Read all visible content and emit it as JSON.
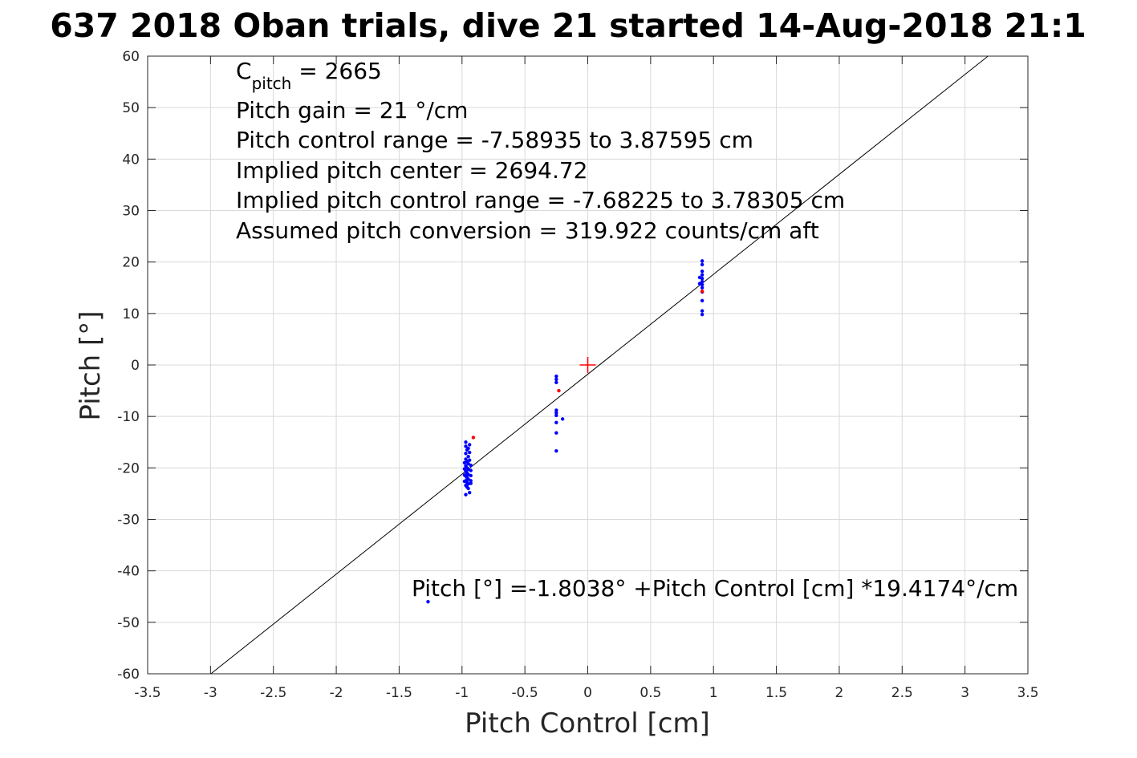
{
  "chart_data": {
    "type": "scatter",
    "title": "637 2018 Oban trials, dive 21 started 14-Aug-2018 21:1",
    "xlabel": "Pitch Control [cm]",
    "ylabel": "Pitch [°]",
    "xlim": [
      -3.5,
      3.5
    ],
    "ylim": [
      -60,
      60
    ],
    "xticks": [
      -3.5,
      -3,
      -2.5,
      -2,
      -1.5,
      -1,
      -0.5,
      0,
      0.5,
      1,
      1.5,
      2,
      2.5,
      3,
      3.5
    ],
    "yticks": [
      -60,
      -50,
      -40,
      -30,
      -20,
      -10,
      0,
      10,
      20,
      30,
      40,
      50,
      60
    ],
    "xtick_labels": [
      "-3.5",
      "-3",
      "-2.5",
      "-2",
      "-1.5",
      "-1",
      "-0.5",
      "0",
      "0.5",
      "1",
      "1.5",
      "2",
      "2.5",
      "3",
      "3.5"
    ],
    "ytick_labels": [
      "-60",
      "-50",
      "-40",
      "-30",
      "-20",
      "-10",
      "0",
      "10",
      "20",
      "30",
      "40",
      "50",
      "60"
    ],
    "grid": true,
    "annotations": {
      "c_pitch_main": "C",
      "c_pitch_sub": "pitch",
      "c_pitch_rest": " = 2665",
      "lines": [
        "Pitch gain = 21 °/cm",
        "Pitch control range = -7.58935 to 3.87595 cm",
        "Implied pitch center = 2694.72",
        "Implied pitch control range = -7.68225 to 3.78305 cm",
        "Assumed pitch conversion = 319.922 counts/cm aft"
      ],
      "fit_equation": "Pitch [°] =-1.8038° +Pitch Control [cm] *19.4174°/cm"
    },
    "fit_line": {
      "intercept": -1.8038,
      "slope": 19.4174
    },
    "center_marker": {
      "x": 0,
      "y": 0,
      "color": "#ff0000"
    },
    "series": [
      {
        "color": "#0000ff",
        "points": [
          [
            -0.97,
            -15.0
          ],
          [
            -0.97,
            -15.8
          ],
          [
            -0.96,
            -16.5
          ],
          [
            -0.97,
            -17.2
          ],
          [
            -0.95,
            -17.8
          ],
          [
            -0.97,
            -18.3
          ],
          [
            -0.96,
            -18.8
          ],
          [
            -0.95,
            -19.2
          ],
          [
            -0.97,
            -19.6
          ],
          [
            -0.96,
            -20.0
          ],
          [
            -0.95,
            -20.3
          ],
          [
            -0.97,
            -20.7
          ],
          [
            -0.96,
            -21.0
          ],
          [
            -0.95,
            -21.3
          ],
          [
            -0.97,
            -21.6
          ],
          [
            -0.96,
            -21.9
          ],
          [
            -0.95,
            -22.2
          ],
          [
            -0.97,
            -22.5
          ],
          [
            -0.96,
            -22.8
          ],
          [
            -0.95,
            -23.1
          ],
          [
            -0.97,
            -23.4
          ],
          [
            -0.96,
            -23.7
          ],
          [
            -0.95,
            -24.0
          ],
          [
            -0.97,
            -25.2
          ],
          [
            -0.94,
            -24.8
          ],
          [
            -0.93,
            -19.5
          ],
          [
            -0.93,
            -20.5
          ],
          [
            -0.93,
            -21.5
          ],
          [
            -0.93,
            -22.5
          ],
          [
            -0.93,
            -23.0
          ],
          [
            -0.94,
            -17.0
          ],
          [
            -0.94,
            -18.5
          ],
          [
            -0.98,
            -19.0
          ],
          [
            -0.98,
            -20.2
          ],
          [
            -0.98,
            -21.4
          ],
          [
            -0.98,
            -22.6
          ],
          [
            -0.95,
            -16.2
          ],
          [
            -0.94,
            -15.5
          ],
          [
            -0.25,
            -2.2
          ],
          [
            -0.25,
            -2.8
          ],
          [
            -0.25,
            -3.4
          ],
          [
            -0.25,
            -8.8
          ],
          [
            -0.25,
            -9.3
          ],
          [
            -0.25,
            -9.8
          ],
          [
            -0.25,
            -11.2
          ],
          [
            -0.25,
            -13.2
          ],
          [
            -0.25,
            -16.7
          ],
          [
            -0.2,
            -10.5
          ],
          [
            0.91,
            20.2
          ],
          [
            0.91,
            19.5
          ],
          [
            0.91,
            18.2
          ],
          [
            0.91,
            17.5
          ],
          [
            0.91,
            16.8
          ],
          [
            0.91,
            16.2
          ],
          [
            0.91,
            15.6
          ],
          [
            0.91,
            15.0
          ],
          [
            0.91,
            14.2
          ],
          [
            0.91,
            12.5
          ],
          [
            0.91,
            10.5
          ],
          [
            0.91,
            9.8
          ],
          [
            0.89,
            15.8
          ],
          [
            0.89,
            17.0
          ],
          [
            -1.27,
            -46.0
          ]
        ]
      },
      {
        "color": "#ff0000",
        "points": [
          [
            -0.91,
            -14.1
          ],
          [
            -0.23,
            -5.0
          ],
          [
            0.91,
            14.3
          ]
        ]
      }
    ]
  }
}
